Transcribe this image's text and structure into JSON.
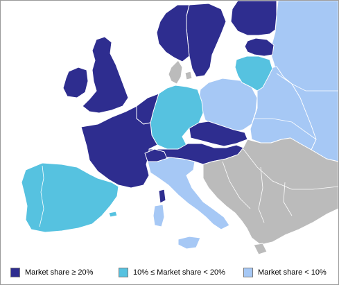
{
  "colors": {
    "high": "#2e2d8f",
    "medium": "#56c2e0",
    "low": "#a6c8f5",
    "none": "#bbbbbb",
    "sea": "#ffffff"
  },
  "legend": [
    {
      "label": "Market share ≥ 20%",
      "color": "#2e2d8f"
    },
    {
      "label": "10% ≤ Market share < 20%",
      "color": "#56c2e0"
    },
    {
      "label": "Market share < 10%",
      "color": "#a6c8f5"
    }
  ],
  "regions": {
    "high": "Market share ≥ 20%",
    "medium": "10% ≤ Market share < 20%",
    "low": "Market share < 10%"
  }
}
